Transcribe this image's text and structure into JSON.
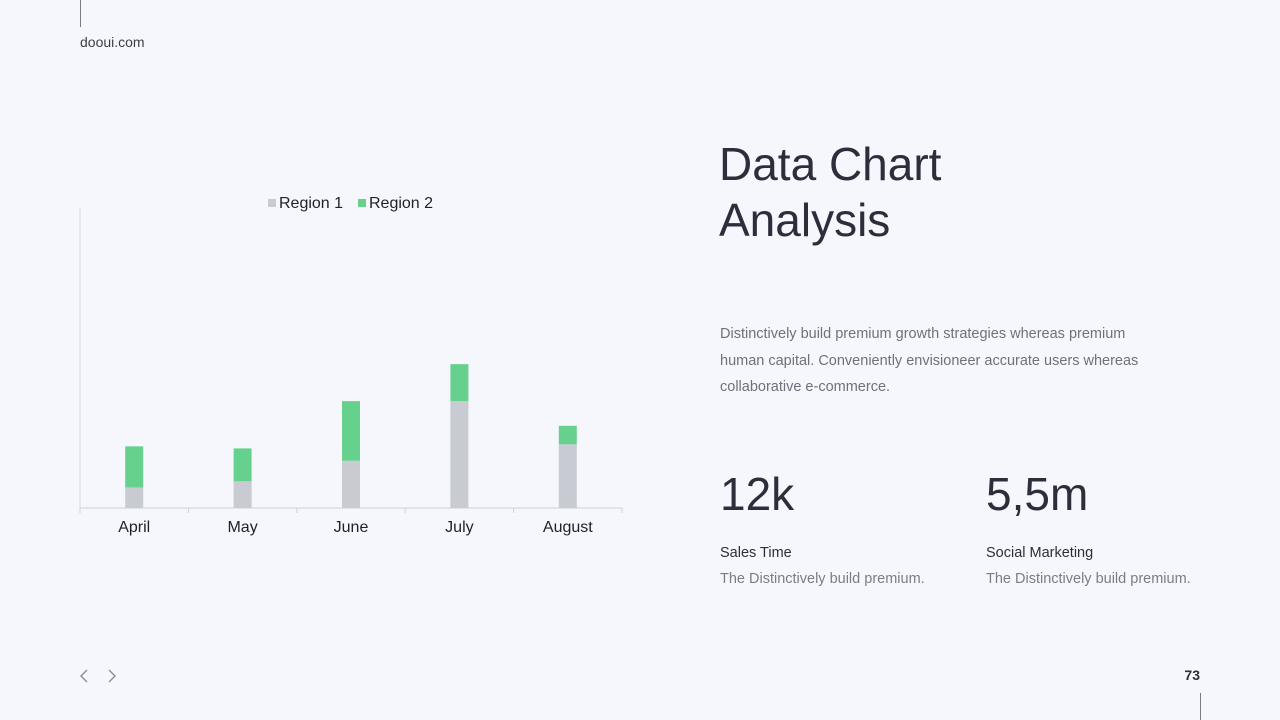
{
  "brand": "dooui.com",
  "title": {
    "line1": "Data Chart",
    "line2": "Analysis"
  },
  "description": "Distinctively build premium growth strategies whereas premium human capital. Conveniently envisioneer accurate users whereas collaborative e-commerce.",
  "stats": [
    {
      "value": "12k",
      "label": "Sales Time",
      "sub": "The Distinctively build premium."
    },
    {
      "value": "5,5m",
      "label": "Social Marketing",
      "sub": "The Distinctively build premium."
    }
  ],
  "page_number": "73",
  "nav": {
    "prev_icon": "chevron-left-icon",
    "next_icon": "chevron-right-icon"
  },
  "colors": {
    "region1": "#c9cbd2",
    "region2": "#66d18d",
    "background": "#f6f7fc",
    "text": "#2c2f3b"
  },
  "chart_data": {
    "type": "bar",
    "stacked": true,
    "categories": [
      "April",
      "May",
      "June",
      "July",
      "August"
    ],
    "series": [
      {
        "name": "Region 1",
        "values": [
          1.0,
          1.3,
          2.3,
          5.2,
          3.1
        ],
        "color": "#c9cbd2"
      },
      {
        "name": "Region 2",
        "values": [
          2.0,
          1.6,
          2.9,
          1.8,
          0.9
        ],
        "color": "#66d18d"
      }
    ],
    "ylim": [
      0,
      14.6
    ],
    "legend": "top",
    "grid": false
  }
}
